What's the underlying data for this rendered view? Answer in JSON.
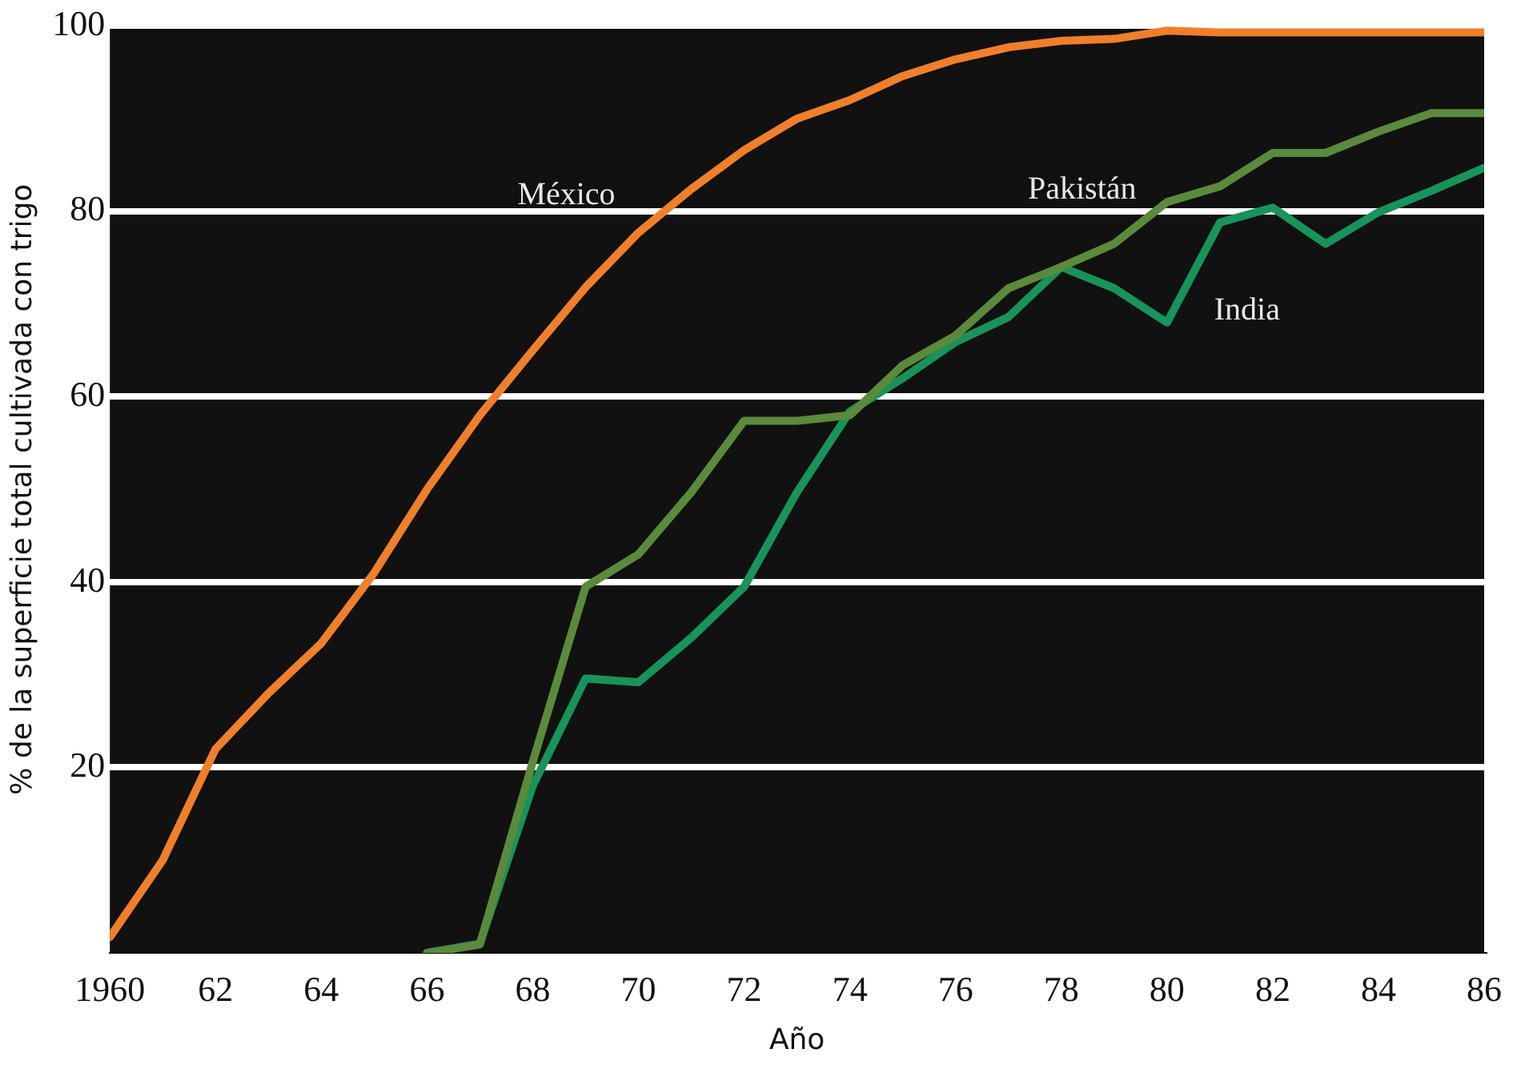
{
  "chart_data": {
    "type": "line",
    "xlabel": "Año",
    "ylabel": "% de la superficie total cultivada con trigo",
    "x": [
      1960,
      1961,
      1962,
      1963,
      1964,
      1965,
      1966,
      1967,
      1968,
      1969,
      1970,
      1971,
      1972,
      1973,
      1974,
      1975,
      1976,
      1977,
      1978,
      1979,
      1980,
      1981,
      1982,
      1983,
      1984,
      1985,
      1986
    ],
    "series": [
      {
        "name": "México",
        "color": "#f07f2c",
        "values": [
          1.7,
          10,
          22,
          28,
          33.4,
          41,
          50,
          58,
          65,
          71.8,
          77.7,
          82.4,
          86.6,
          90,
          92,
          94.6,
          96.4,
          97.7,
          98.4,
          98.6,
          99.5,
          99.3,
          99.3,
          99.3,
          99.3,
          99.3,
          99.3
        ]
      },
      {
        "name": "Pakistán",
        "color": "#5b8a3c",
        "values": [
          null,
          null,
          null,
          null,
          null,
          null,
          0,
          0.9,
          20.6,
          39.5,
          43,
          49.7,
          57.4,
          57.4,
          58,
          63.4,
          66.6,
          71.7,
          74,
          76.5,
          81,
          82.7,
          86.3,
          86.3,
          88.6,
          90.6,
          90.6
        ]
      },
      {
        "name": "India",
        "color": "#18935a",
        "values": [
          null,
          null,
          null,
          null,
          null,
          null,
          0,
          1,
          18,
          29.6,
          29.2,
          34,
          39.5,
          49.7,
          58.4,
          62,
          65.9,
          68.6,
          74,
          71.7,
          68,
          78.8,
          80.4,
          76.5,
          79.9,
          82.2,
          84.7
        ]
      }
    ],
    "xlim": [
      1960,
      1986
    ],
    "xticks": [
      1960,
      {
        "value": 1962,
        "label": "62"
      },
      {
        "value": 1964,
        "label": "64"
      },
      {
        "value": 1966,
        "label": "66"
      },
      {
        "value": 1968,
        "label": "68"
      },
      {
        "value": 1970,
        "label": "70"
      },
      {
        "value": 1972,
        "label": "72"
      },
      {
        "value": 1974,
        "label": "74"
      },
      {
        "value": 1976,
        "label": "76"
      },
      {
        "value": 1978,
        "label": "78"
      },
      {
        "value": 1980,
        "label": "80"
      },
      {
        "value": 1982,
        "label": "82"
      },
      {
        "value": 1984,
        "label": "84"
      },
      {
        "value": 1986,
        "label": "86"
      }
    ],
    "ylim": [
      0,
      100
    ],
    "yticks": [
      20,
      40,
      60,
      80,
      100
    ],
    "grid": "y",
    "legend": false,
    "marker": "none",
    "line_style": "solid"
  }
}
